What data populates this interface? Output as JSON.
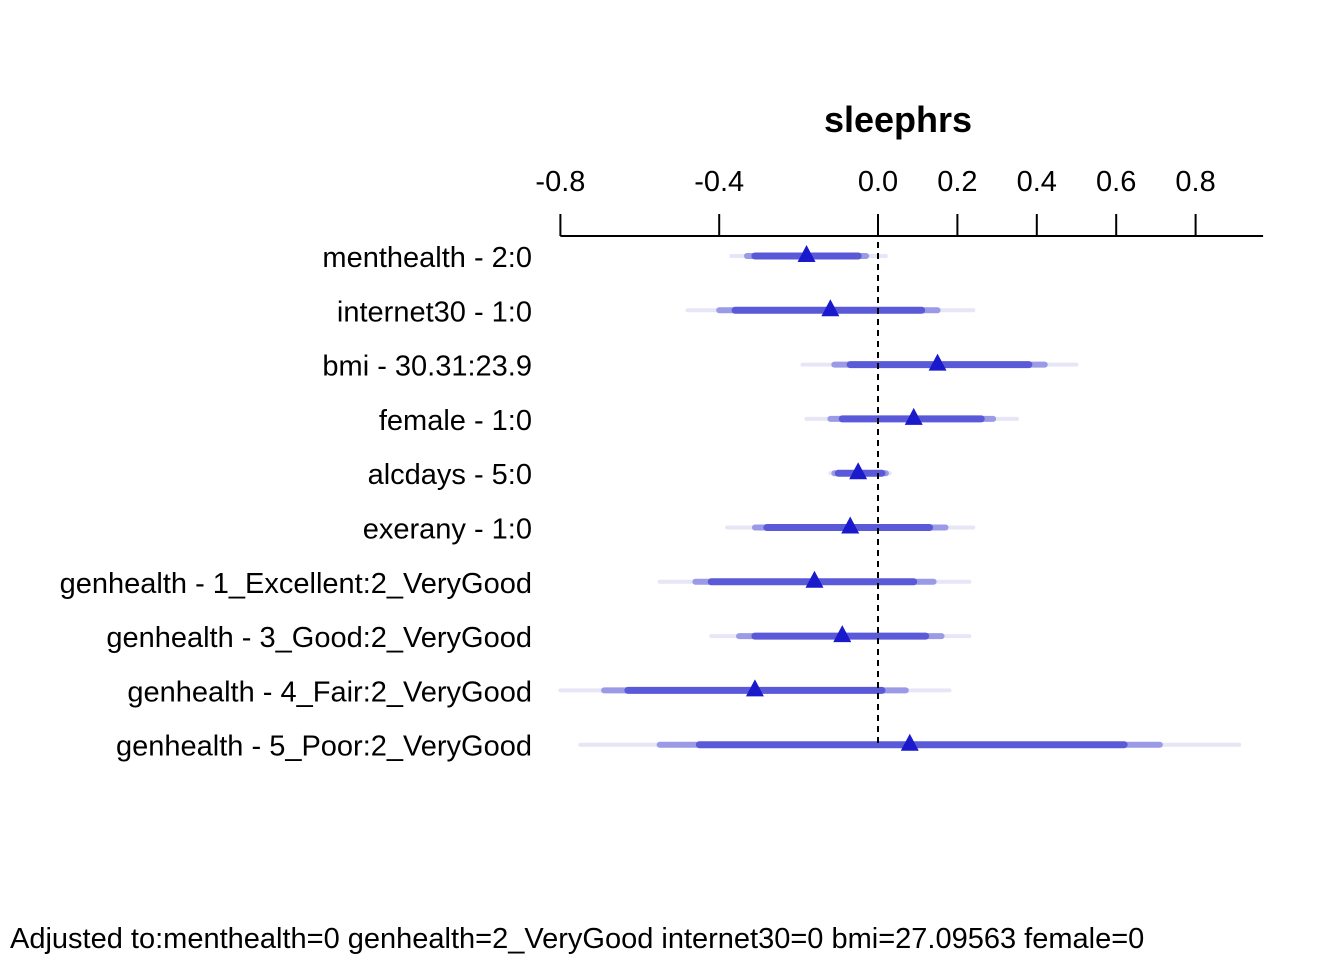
{
  "chart_data": {
    "type": "forest",
    "title": "sleephrs",
    "x_ticks": [
      -0.8,
      -0.4,
      0.0,
      0.2,
      0.4,
      0.6,
      0.8
    ],
    "x_tick_labels": [
      "-0.8",
      "-0.4",
      "0.0",
      "0.2",
      "0.4",
      "0.6",
      "0.8"
    ],
    "xlim": [
      -0.8,
      0.97
    ],
    "reference_line": 0,
    "ci_levels": [
      "99%",
      "95%",
      "90%"
    ],
    "colors": {
      "point": "#1a1acc",
      "ci_90": "#5a5ad9",
      "ci_95": "#9a9ae6",
      "ci_99": "#e6e6f7",
      "ref_line": "#000000"
    },
    "rows": [
      {
        "label": "menthealth - 2:0",
        "estimate": -0.18,
        "ci90": [
          -0.31,
          -0.05
        ],
        "ci95": [
          -0.33,
          -0.03
        ],
        "ci99": [
          -0.37,
          0.02
        ]
      },
      {
        "label": "internet30 - 1:0",
        "estimate": -0.12,
        "ci90": [
          -0.36,
          0.11
        ],
        "ci95": [
          -0.4,
          0.15
        ],
        "ci99": [
          -0.48,
          0.24
        ]
      },
      {
        "label": "bmi - 30.31:23.9",
        "estimate": 0.15,
        "ci90": [
          -0.07,
          0.38
        ],
        "ci95": [
          -0.11,
          0.42
        ],
        "ci99": [
          -0.19,
          0.5
        ]
      },
      {
        "label": "female - 1:0",
        "estimate": 0.09,
        "ci90": [
          -0.09,
          0.26
        ],
        "ci95": [
          -0.12,
          0.29
        ],
        "ci99": [
          -0.18,
          0.35
        ]
      },
      {
        "label": "alcdays - 5:0",
        "estimate": -0.05,
        "ci90": [
          -0.1,
          0.01
        ],
        "ci95": [
          -0.11,
          0.02
        ],
        "ci99": [
          -0.12,
          0.03
        ]
      },
      {
        "label": "exerany - 1:0",
        "estimate": -0.07,
        "ci90": [
          -0.28,
          0.13
        ],
        "ci95": [
          -0.31,
          0.17
        ],
        "ci99": [
          -0.38,
          0.24
        ]
      },
      {
        "label": "genhealth - 1_Excellent:2_VeryGood",
        "estimate": -0.16,
        "ci90": [
          -0.42,
          0.09
        ],
        "ci95": [
          -0.46,
          0.14
        ],
        "ci99": [
          -0.55,
          0.23
        ]
      },
      {
        "label": "genhealth - 3_Good:2_VeryGood",
        "estimate": -0.09,
        "ci90": [
          -0.31,
          0.12
        ],
        "ci95": [
          -0.35,
          0.16
        ],
        "ci99": [
          -0.42,
          0.23
        ]
      },
      {
        "label": "genhealth - 4_Fair:2_VeryGood",
        "estimate": -0.31,
        "ci90": [
          -0.63,
          0.01
        ],
        "ci95": [
          -0.69,
          0.07
        ],
        "ci99": [
          -0.8,
          0.18
        ]
      },
      {
        "label": "genhealth - 5_Poor:2_VeryGood",
        "estimate": 0.08,
        "ci90": [
          -0.45,
          0.62
        ],
        "ci95": [
          -0.55,
          0.71
        ],
        "ci99": [
          -0.75,
          0.91
        ]
      }
    ],
    "footnote": "Adjusted to:menthealth=0 genhealth=2_VeryGood internet30=0 bmi=27.09563 female=0"
  }
}
